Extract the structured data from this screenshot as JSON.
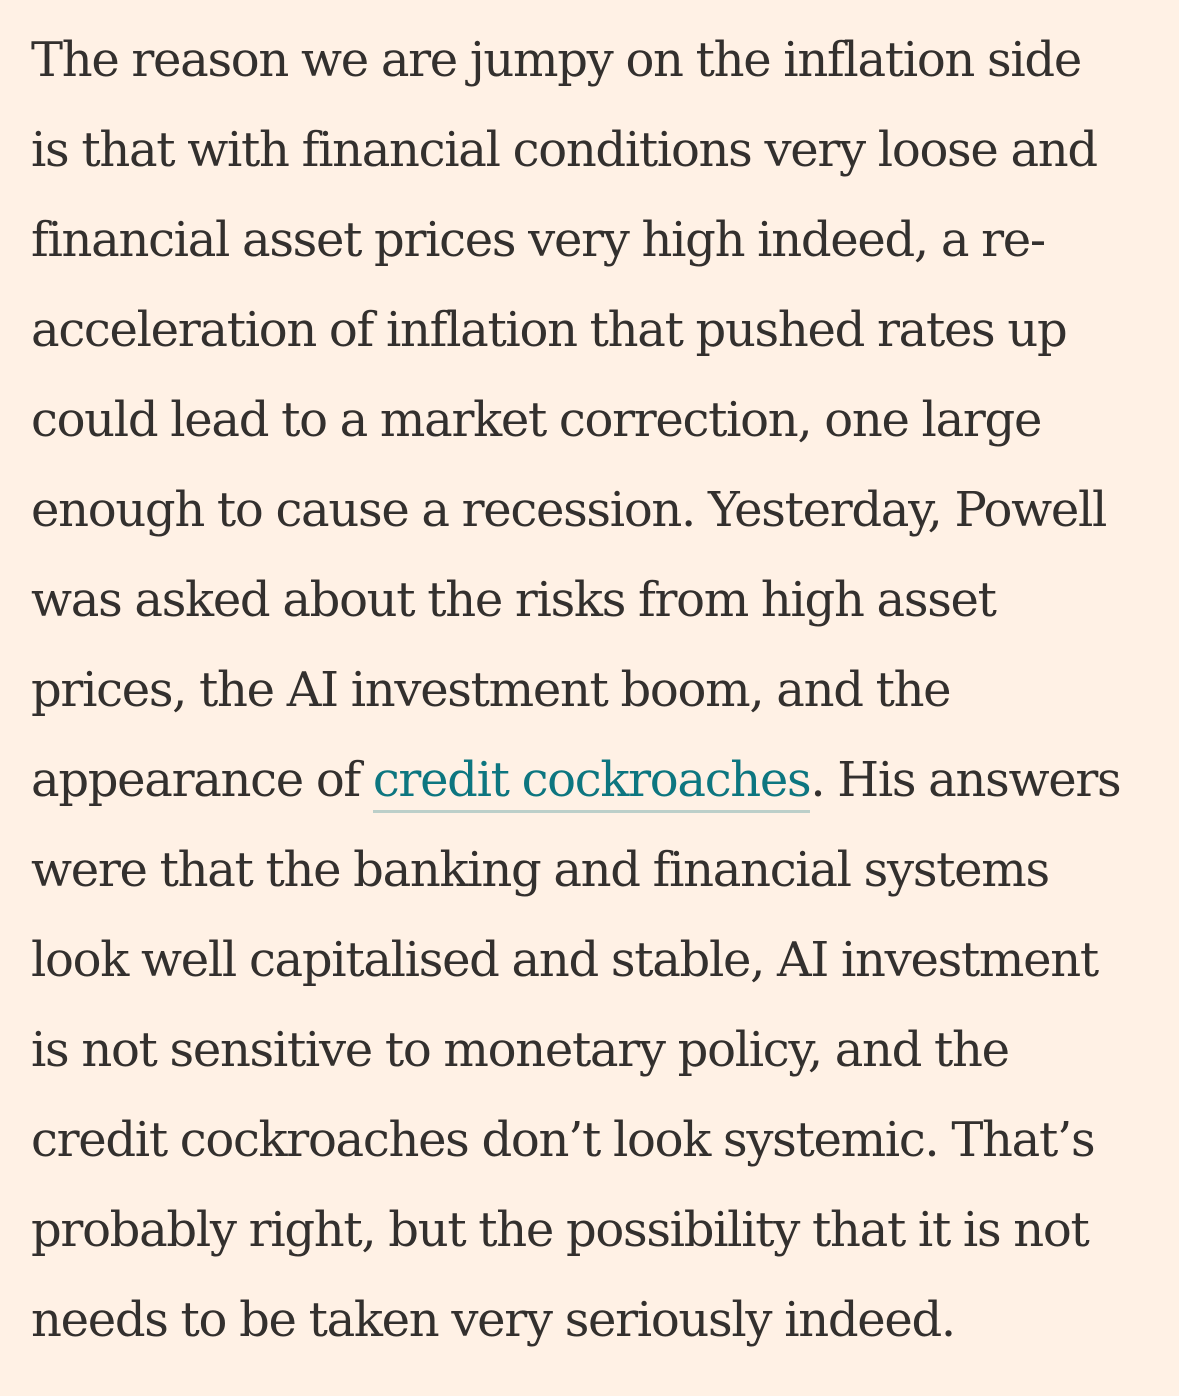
{
  "article": {
    "lines": [
      {
        "text": "The reason we are jumpy on the inflation side"
      },
      {
        "text": "is that with financial conditions very loose and"
      },
      {
        "text": "financial asset prices very high indeed, a re-"
      },
      {
        "text": "acceleration of inflation that pushed rates up"
      },
      {
        "text": "could lead to a market correction, one large"
      },
      {
        "text": "enough to cause a recession. Yesterday, Powell"
      },
      {
        "text": "was asked about the risks from high asset"
      },
      {
        "text": "prices, the AI investment boom, and the"
      },
      {
        "before": "appearance of ",
        "link": "credit cockroaches",
        "after": ". His answers"
      },
      {
        "text": "were that the banking and financial systems"
      },
      {
        "text": "look well capitalised and stable, AI investment"
      },
      {
        "text": "is not sensitive to monetary policy, and the"
      },
      {
        "text": "credit cockroaches don’t look systemic. That’s"
      },
      {
        "text": "probably right, but the possibility that it is not"
      },
      {
        "text": "needs to be taken very seriously indeed."
      }
    ]
  }
}
